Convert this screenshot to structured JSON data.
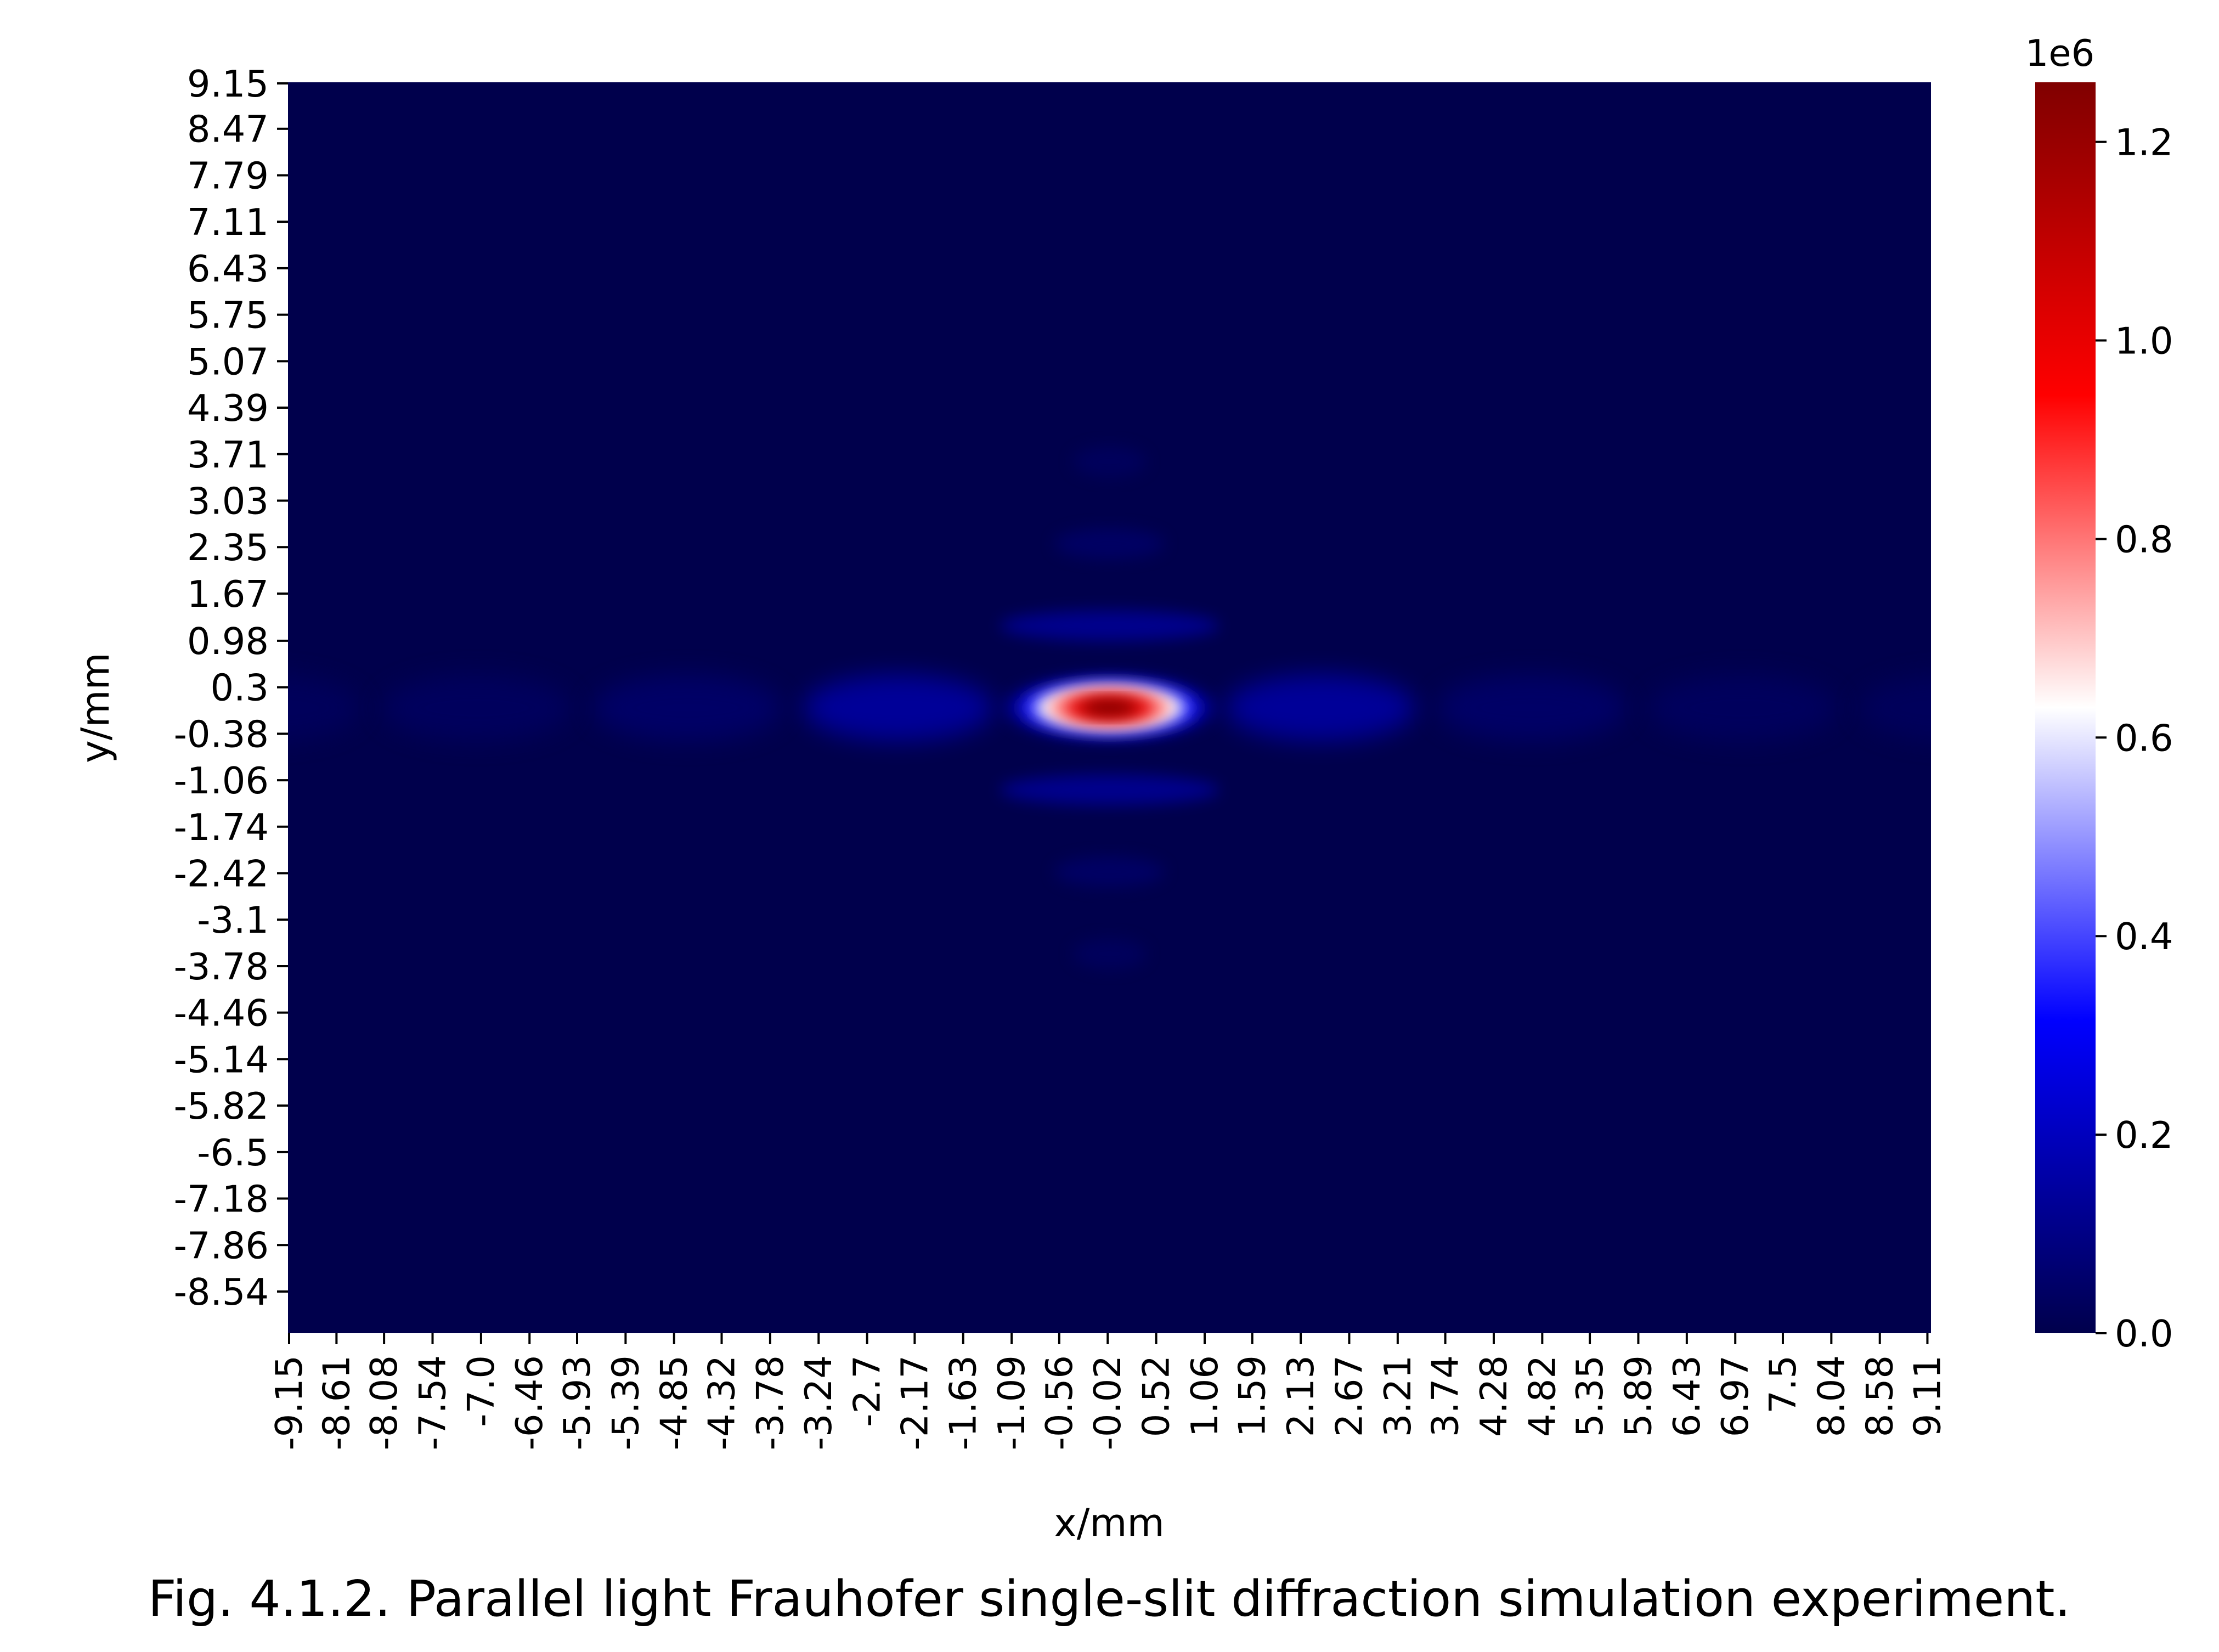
{
  "chart_data": {
    "type": "heatmap",
    "title": "",
    "xlabel": "x/mm",
    "ylabel": "y/mm",
    "x_tick_labels": [
      "-9.15",
      "-8.61",
      "-8.08",
      "-7.54",
      "-7.0",
      "-6.46",
      "-5.93",
      "-5.39",
      "-4.85",
      "-4.32",
      "-3.78",
      "-3.24",
      "-2.7",
      "-2.17",
      "-1.63",
      "-1.09",
      "-0.56",
      "-0.02",
      "0.52",
      "1.06",
      "1.59",
      "2.13",
      "2.67",
      "3.21",
      "3.74",
      "4.28",
      "4.82",
      "5.35",
      "5.89",
      "6.43",
      "6.97",
      "7.5",
      "8.04",
      "8.58",
      "9.11"
    ],
    "y_tick_labels": [
      "9.15",
      "8.47",
      "7.79",
      "7.11",
      "6.43",
      "5.75",
      "5.07",
      "4.39",
      "3.71",
      "3.03",
      "2.35",
      "1.67",
      "0.98",
      "0.3",
      "-0.38",
      "-1.06",
      "-1.74",
      "-2.42",
      "-3.1",
      "-3.78",
      "-4.46",
      "-5.14",
      "-5.82",
      "-6.5",
      "-7.18",
      "-7.86",
      "-8.54"
    ],
    "xlim": [
      -9.15,
      9.15
    ],
    "ylim": [
      -9.15,
      9.15
    ],
    "colormap": "seismic",
    "colorbar": {
      "range": [
        0,
        1.26
      ],
      "ticks": [
        "0.0",
        "0.2",
        "0.4",
        "0.6",
        "0.8",
        "1.0",
        "1.2"
      ],
      "tick_values": [
        0,
        0.2,
        0.4,
        0.6,
        0.8,
        1.0,
        1.2
      ],
      "scale_label": "1e6"
    },
    "peak": {
      "x": 0.0,
      "y": 0.0,
      "value": 1.26
    },
    "fringe_spacing_x_mm": 2.35,
    "fringe_spacing_y_mm": 1.2,
    "colors": {
      "low": "#00004c",
      "mid": "#ffffff",
      "high": "#800000"
    }
  },
  "caption": "Fig. 4.1.2. Parallel light Frauhofer single-slit diffraction simulation experiment."
}
